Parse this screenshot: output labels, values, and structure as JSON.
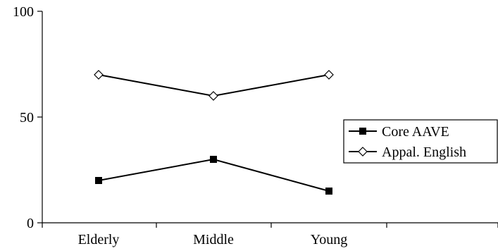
{
  "chart_data": {
    "type": "line",
    "categories": [
      "Elderly",
      "Middle",
      "Young"
    ],
    "ylim": [
      0,
      100
    ],
    "yticks": [
      0,
      50,
      100
    ],
    "ytick_labels": [
      "0",
      "50",
      "100"
    ],
    "grid": false,
    "legend_position": "right",
    "series": [
      {
        "name": "Core AAVE",
        "values": [
          20,
          30,
          15
        ],
        "marker": "filled-square",
        "color": "#000000"
      },
      {
        "name": "Appal. English",
        "values": [
          70,
          60,
          70
        ],
        "marker": "open-diamond",
        "color": "#000000"
      }
    ]
  }
}
